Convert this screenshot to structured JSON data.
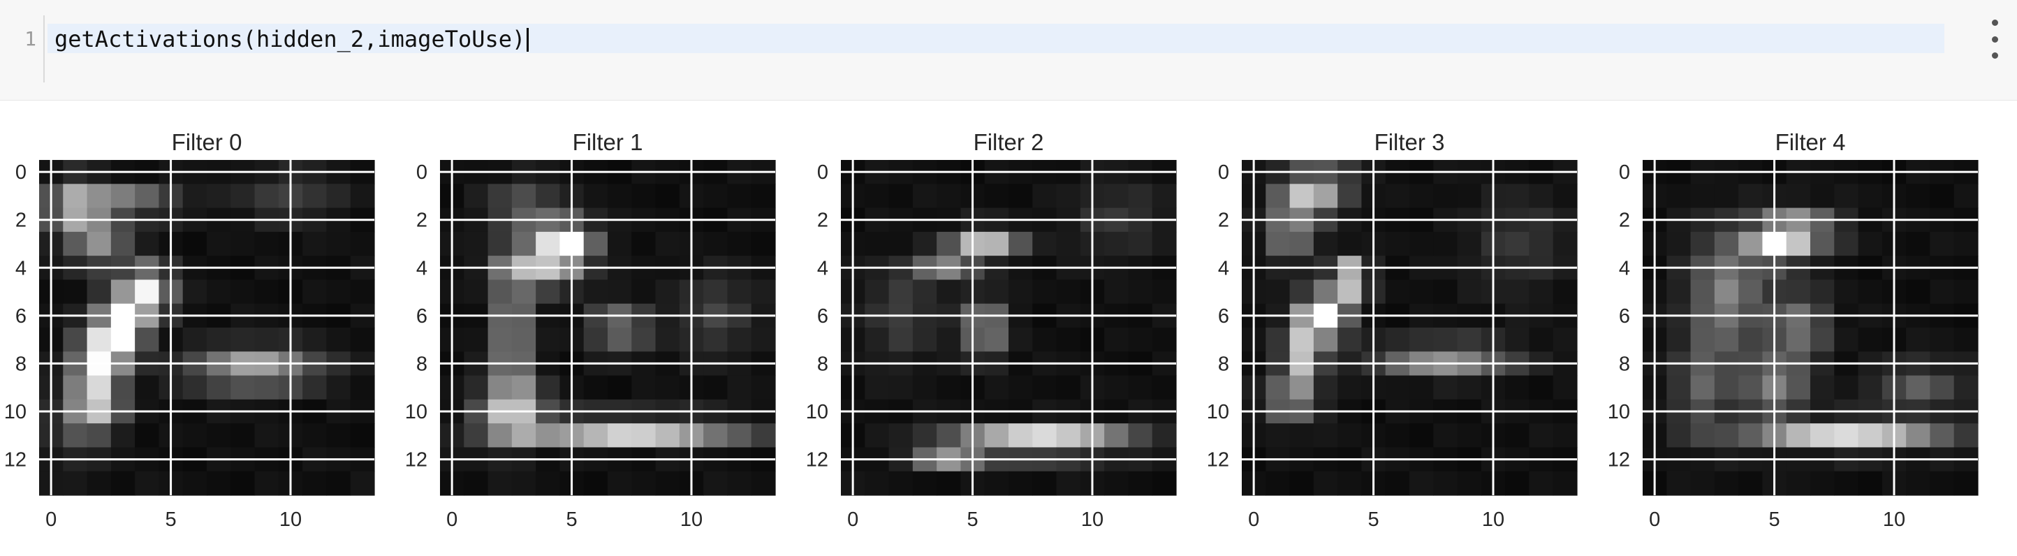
{
  "editor": {
    "line_number": "1",
    "code": "getActivations(hidden_2,imageToUse)"
  },
  "icons": {
    "menu": "vertical-ellipsis-icon"
  },
  "colors": {
    "cell_background": "#f7f7f7",
    "active_line": "#e8f0fb"
  },
  "chart_data": [
    {
      "type": "heatmap",
      "title": "Filter 0",
      "colormap": "gray",
      "grid": true,
      "xticks": [
        0,
        5,
        10
      ],
      "yticks": [
        0,
        2,
        4,
        6,
        8,
        10,
        12
      ],
      "grid_size": [
        14,
        14
      ],
      "blobs": [
        [
          1,
          1.5,
          1.1,
          1.1,
          0.55
        ],
        [
          3,
          1.3,
          2.2,
          0.6,
          0.5
        ],
        [
          2,
          3,
          1.2,
          1,
          0.45
        ],
        [
          4,
          5,
          1,
          1,
          0.85
        ],
        [
          3,
          6.5,
          0.9,
          1.2,
          0.95
        ],
        [
          2,
          8,
          0.9,
          1.6,
          0.85
        ],
        [
          2,
          10,
          1,
          0.9,
          0.45
        ],
        [
          8.5,
          8.2,
          2.6,
          0.9,
          0.6
        ],
        [
          1,
          10,
          1,
          2,
          0.25
        ],
        [
          10,
          1,
          2,
          1,
          0.2
        ]
      ]
    },
    {
      "type": "heatmap",
      "title": "Filter 1",
      "colormap": "gray",
      "grid": true,
      "xticks": [
        0,
        5,
        10
      ],
      "yticks": [
        0,
        2,
        4,
        6,
        8,
        10,
        12
      ],
      "grid_size": [
        14,
        14
      ],
      "blobs": [
        [
          4.7,
          3,
          1.2,
          0.9,
          0.95
        ],
        [
          3.5,
          4,
          1.6,
          0.9,
          0.55
        ],
        [
          2.5,
          7,
          0.8,
          3,
          0.5
        ],
        [
          2.5,
          10,
          1.4,
          1.2,
          0.6
        ],
        [
          7.5,
          10.8,
          4.5,
          0.55,
          0.85
        ],
        [
          7,
          6.5,
          1.2,
          1,
          0.4
        ],
        [
          3,
          1.5,
          1.5,
          1,
          0.3
        ],
        [
          11,
          6,
          1.6,
          1.6,
          0.2
        ]
      ]
    },
    {
      "type": "heatmap",
      "title": "Filter 2",
      "colormap": "gray",
      "grid": true,
      "xticks": [
        0,
        5,
        10
      ],
      "yticks": [
        0,
        2,
        4,
        6,
        8,
        10,
        12
      ],
      "grid_size": [
        14,
        14
      ],
      "blobs": [
        [
          5.5,
          3,
          1.4,
          0.6,
          0.75
        ],
        [
          3.8,
          4,
          1.2,
          0.5,
          0.45
        ],
        [
          5.5,
          6.5,
          0.9,
          1.2,
          0.5
        ],
        [
          8,
          11.2,
          3.5,
          0.6,
          0.9
        ],
        [
          4,
          11.8,
          1.5,
          0.5,
          0.55
        ],
        [
          2,
          6,
          1.5,
          2,
          0.18
        ],
        [
          11,
          2,
          2,
          1.5,
          0.15
        ]
      ]
    },
    {
      "type": "heatmap",
      "title": "Filter 3",
      "colormap": "gray",
      "grid": true,
      "xticks": [
        0,
        5,
        10
      ],
      "yticks": [
        0,
        2,
        4,
        6,
        8,
        10,
        12
      ],
      "grid_size": [
        14,
        14
      ],
      "blobs": [
        [
          2.3,
          1,
          1.2,
          0.9,
          0.55
        ],
        [
          1.5,
          2.5,
          1,
          1.2,
          0.45
        ],
        [
          4,
          4.5,
          0.7,
          0.8,
          0.9
        ],
        [
          3,
          6,
          0.9,
          1,
          0.9
        ],
        [
          2,
          7.5,
          0.8,
          1.5,
          0.7
        ],
        [
          1.5,
          9.5,
          1.1,
          1,
          0.4
        ],
        [
          8,
          7.8,
          2.8,
          0.7,
          0.55
        ],
        [
          3,
          0.5,
          1.5,
          0.6,
          0.35
        ],
        [
          11,
          3,
          2,
          2,
          0.15
        ]
      ]
    },
    {
      "type": "heatmap",
      "title": "Filter 4",
      "colormap": "gray",
      "grid": true,
      "xticks": [
        0,
        5,
        10
      ],
      "yticks": [
        0,
        2,
        4,
        6,
        8,
        10,
        12
      ],
      "grid_size": [
        14,
        14
      ],
      "blobs": [
        [
          5,
          3,
          0.9,
          0.7,
          0.95
        ],
        [
          6,
          2.5,
          1.6,
          0.9,
          0.6
        ],
        [
          3,
          5,
          1.5,
          2.5,
          0.45
        ],
        [
          6,
          6.5,
          1.2,
          1.5,
          0.4
        ],
        [
          5,
          9,
          1.2,
          1.2,
          0.45
        ],
        [
          8,
          11,
          4,
          0.6,
          0.8
        ],
        [
          11,
          9,
          1.8,
          1,
          0.3
        ],
        [
          2,
          9,
          1.2,
          2,
          0.3
        ]
      ]
    }
  ]
}
